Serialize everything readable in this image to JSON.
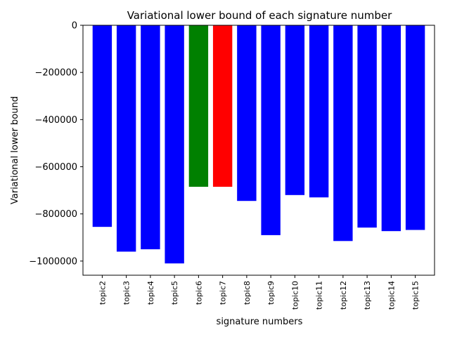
{
  "chart_data": {
    "type": "bar",
    "title": "Variational lower bound of each signature number",
    "xlabel": "signature numbers",
    "ylabel": "Variational lower bound",
    "categories": [
      "topic2",
      "topic3",
      "topic4",
      "topic5",
      "topic6",
      "topic7",
      "topic8",
      "topic9",
      "topic10",
      "topic11",
      "topic12",
      "topic13",
      "topic14",
      "topic15"
    ],
    "values": [
      -855000,
      -960000,
      -950000,
      -1010000,
      -685000,
      -685000,
      -745000,
      -890000,
      -720000,
      -730000,
      -915000,
      -858000,
      -873000,
      -868000
    ],
    "bar_colors": [
      "#0000ff",
      "#0000ff",
      "#0000ff",
      "#0000ff",
      "#008000",
      "#ff0000",
      "#0000ff",
      "#0000ff",
      "#0000ff",
      "#0000ff",
      "#0000ff",
      "#0000ff",
      "#0000ff",
      "#0000ff"
    ],
    "yticks": [
      0,
      -200000,
      -400000,
      -600000,
      -800000,
      -1000000
    ],
    "ytick_labels": [
      "0",
      "−200000",
      "−400000",
      "−600000",
      "−800000",
      "−1000000"
    ],
    "ylim": [
      -1060000,
      0
    ],
    "grid": false,
    "legend": false
  }
}
